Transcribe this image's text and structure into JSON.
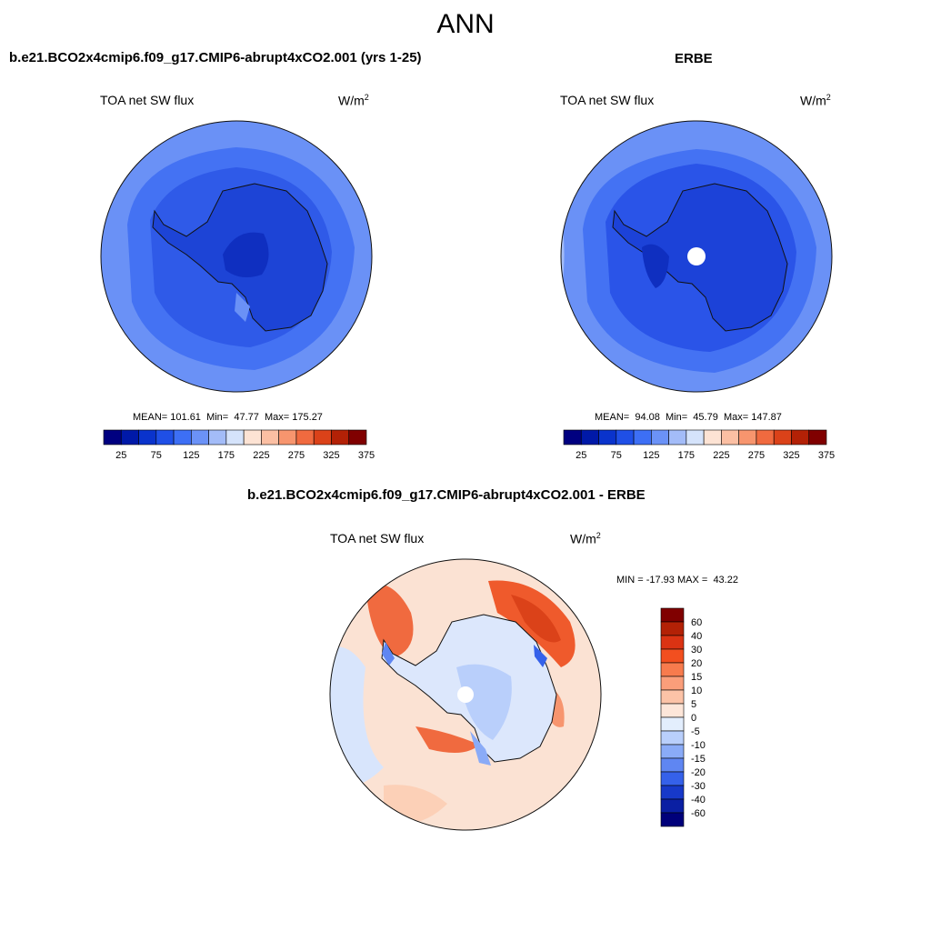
{
  "main_title": "ANN",
  "panels": [
    {
      "title": "b.e21.BCO2x4cmip6.f09_g17.CMIP6-abrupt4xCO2.001 (yrs 1-25)",
      "variable": "TOA net SW flux",
      "units": "W/m",
      "units_sup": "2",
      "stats": {
        "mean_label": "MEAN=",
        "mean": "101.61",
        "min_label": "Min=",
        "min": "47.77",
        "max_label": "Max=",
        "max": "175.27"
      }
    },
    {
      "title": "ERBE",
      "variable": "TOA net SW flux",
      "units": "W/m",
      "units_sup": "2",
      "stats": {
        "mean_label": "MEAN=",
        "mean": "94.08",
        "min_label": "Min=",
        "min": "45.79",
        "max_label": "Max=",
        "max": "147.87"
      }
    },
    {
      "title": "b.e21.BCO2x4cmip6.f09_g17.CMIP6-abrupt4xCO2.001 - ERBE",
      "variable": "TOA net SW flux",
      "units": "W/m",
      "units_sup": "2",
      "stats": {
        "min_label": "MIN =",
        "min": "-17.93",
        "max_label": "MAX =",
        "max": "43.22"
      }
    }
  ],
  "colorbar_abs": {
    "ticks": [
      "25",
      "75",
      "125",
      "175",
      "225",
      "275",
      "325",
      "375"
    ],
    "colors": [
      "#000080",
      "#0019a8",
      "#0a33cc",
      "#1f4fe6",
      "#3d6ff5",
      "#6b92f7",
      "#a3bcf8",
      "#d5e3fb",
      "#fde3d4",
      "#fbbfa3",
      "#f7956e",
      "#f06a3f",
      "#db4219",
      "#b32106",
      "#800000"
    ]
  },
  "colorbar_diff": {
    "ticks": [
      "60",
      "40",
      "30",
      "20",
      "15",
      "10",
      "5",
      "0",
      "-5",
      "-10",
      "-15",
      "-20",
      "-30",
      "-40",
      "-60"
    ],
    "colors": [
      "#800000",
      "#b32106",
      "#db3313",
      "#f24f1f",
      "#f77b4d",
      "#fa9e7a",
      "#fcc3a7",
      "#fde6d9",
      "#e3eefd",
      "#b9cffb",
      "#8aabf7",
      "#5f86f2",
      "#3561ea",
      "#1739c9",
      "#0a1fa3",
      "#00007a"
    ]
  },
  "map_colors": {
    "ocean_outer": "#6a91f6",
    "ocean_mid": "#3f6ef2",
    "ocean_inner": "#2c55e6",
    "land": "#1d44d6",
    "land_core": "#0f2fc0",
    "diff_base": "#fbe2d3",
    "diff_red": "#ef5a2c",
    "diff_blue": "#c9dcfb"
  }
}
